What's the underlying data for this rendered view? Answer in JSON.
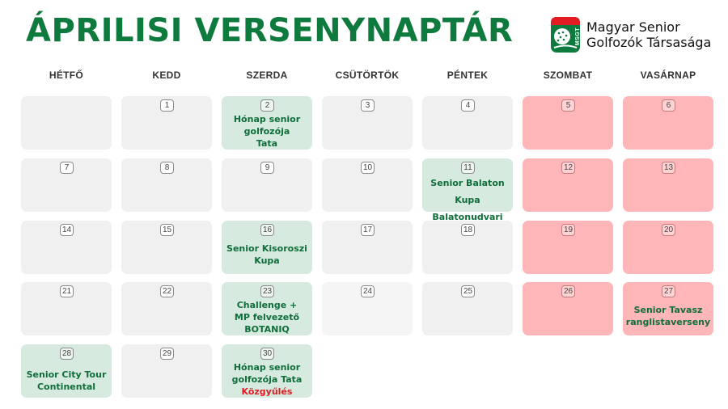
{
  "title": "ÁPRILISI VERSENYNAPTÁR",
  "logo": {
    "badge": "MSGT",
    "line1": "Magyar Senior",
    "line2": "Golfozók Társasága"
  },
  "days": [
    "HÉTFŐ",
    "KEDD",
    "SZERDA",
    "CSÜTÖRTÖK",
    "PÉNTEK",
    "SZOMBAT",
    "VASÁRNAP"
  ],
  "weeks": [
    [
      {
        "num": "",
        "lines": []
      },
      {
        "num": "1",
        "lines": []
      },
      {
        "num": "2",
        "lines": [
          "Hónap senior",
          "golfozója",
          "Tata"
        ]
      },
      {
        "num": "3",
        "lines": []
      },
      {
        "num": "4",
        "lines": []
      },
      {
        "num": "5",
        "lines": []
      },
      {
        "num": "6",
        "lines": []
      }
    ],
    [
      {
        "num": "7",
        "lines": []
      },
      {
        "num": "8",
        "lines": []
      },
      {
        "num": "9",
        "lines": []
      },
      {
        "num": "10",
        "lines": []
      },
      {
        "num": "11",
        "lines": [
          "Senior Balaton Kupa",
          "Balatonudvari"
        ]
      },
      {
        "num": "12",
        "lines": []
      },
      {
        "num": "13",
        "lines": []
      }
    ],
    [
      {
        "num": "14",
        "lines": []
      },
      {
        "num": "15",
        "lines": []
      },
      {
        "num": "16",
        "lines": [
          "Senior Kisoroszi",
          "Kupa"
        ]
      },
      {
        "num": "17",
        "lines": []
      },
      {
        "num": "18",
        "lines": []
      },
      {
        "num": "19",
        "lines": []
      },
      {
        "num": "20",
        "lines": []
      }
    ],
    [
      {
        "num": "21",
        "lines": []
      },
      {
        "num": "22",
        "lines": []
      },
      {
        "num": "23",
        "lines": [
          "Challenge +",
          "MP felvezető",
          "BOTANIQ"
        ]
      },
      {
        "num": "24",
        "lines": []
      },
      {
        "num": "25",
        "lines": []
      },
      {
        "num": "26",
        "lines": []
      },
      {
        "num": "27",
        "lines": [
          "Senior Tavasz",
          "ranglistaverseny"
        ]
      }
    ],
    [
      {
        "num": "28",
        "lines": [
          "Senior City Tour",
          "Continental"
        ]
      },
      {
        "num": "29",
        "lines": []
      },
      {
        "num": "30",
        "lines": [
          "Hónap senior",
          "golfozója Tata"
        ],
        "highlight": "Közgyűlés"
      }
    ]
  ],
  "colors": {
    "title": "#0f7a3e",
    "event_text": "#0f6e39",
    "highlight": "#e31b23",
    "cell_gray": "#f0f0f0",
    "cell_green": "#d6eadf",
    "cell_pink": "#ffb6b8",
    "logo_green": "#0f7a3e",
    "logo_red": "#e31b23"
  }
}
